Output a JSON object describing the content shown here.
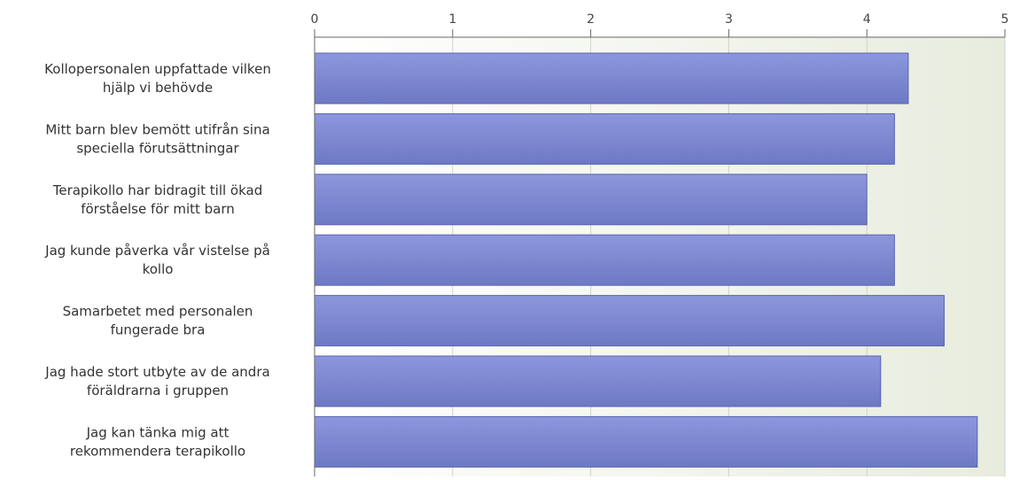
{
  "chart_data": {
    "type": "bar",
    "orientation": "horizontal",
    "categories": [
      [
        "Kollopersonalen uppfattade vilken",
        "hjälp vi behövde"
      ],
      [
        "Mitt barn blev bemött utifrån sina",
        "speciella förutsättningar"
      ],
      [
        "Terapikollo har bidragit till ökad",
        "förståelse för mitt barn"
      ],
      [
        "Jag kunde påverka vår vistelse på",
        "kollo"
      ],
      [
        "Samarbetet med personalen",
        "fungerade bra"
      ],
      [
        "Jag hade stort utbyte av de andra",
        "föräldrarna i gruppen"
      ],
      [
        "Jag kan tänka mig att",
        "rekommendera terapikollo"
      ]
    ],
    "values": [
      4.3,
      4.2,
      4.0,
      4.2,
      4.56,
      4.1,
      4.8
    ],
    "xlim": [
      0,
      5
    ],
    "ticks": [
      "0",
      "1",
      "2",
      "3",
      "4",
      "5"
    ],
    "tick_position": "top",
    "grid": true,
    "colors": {
      "bar_top": "#8c97dc",
      "bar_bottom": "#6d79c4",
      "bar_edge": "#5a65b0",
      "plot_bg_light": "#ffffff",
      "plot_bg_dark": "#e8ecde",
      "grid": "#d0d4c4",
      "axis": "#666666"
    }
  }
}
